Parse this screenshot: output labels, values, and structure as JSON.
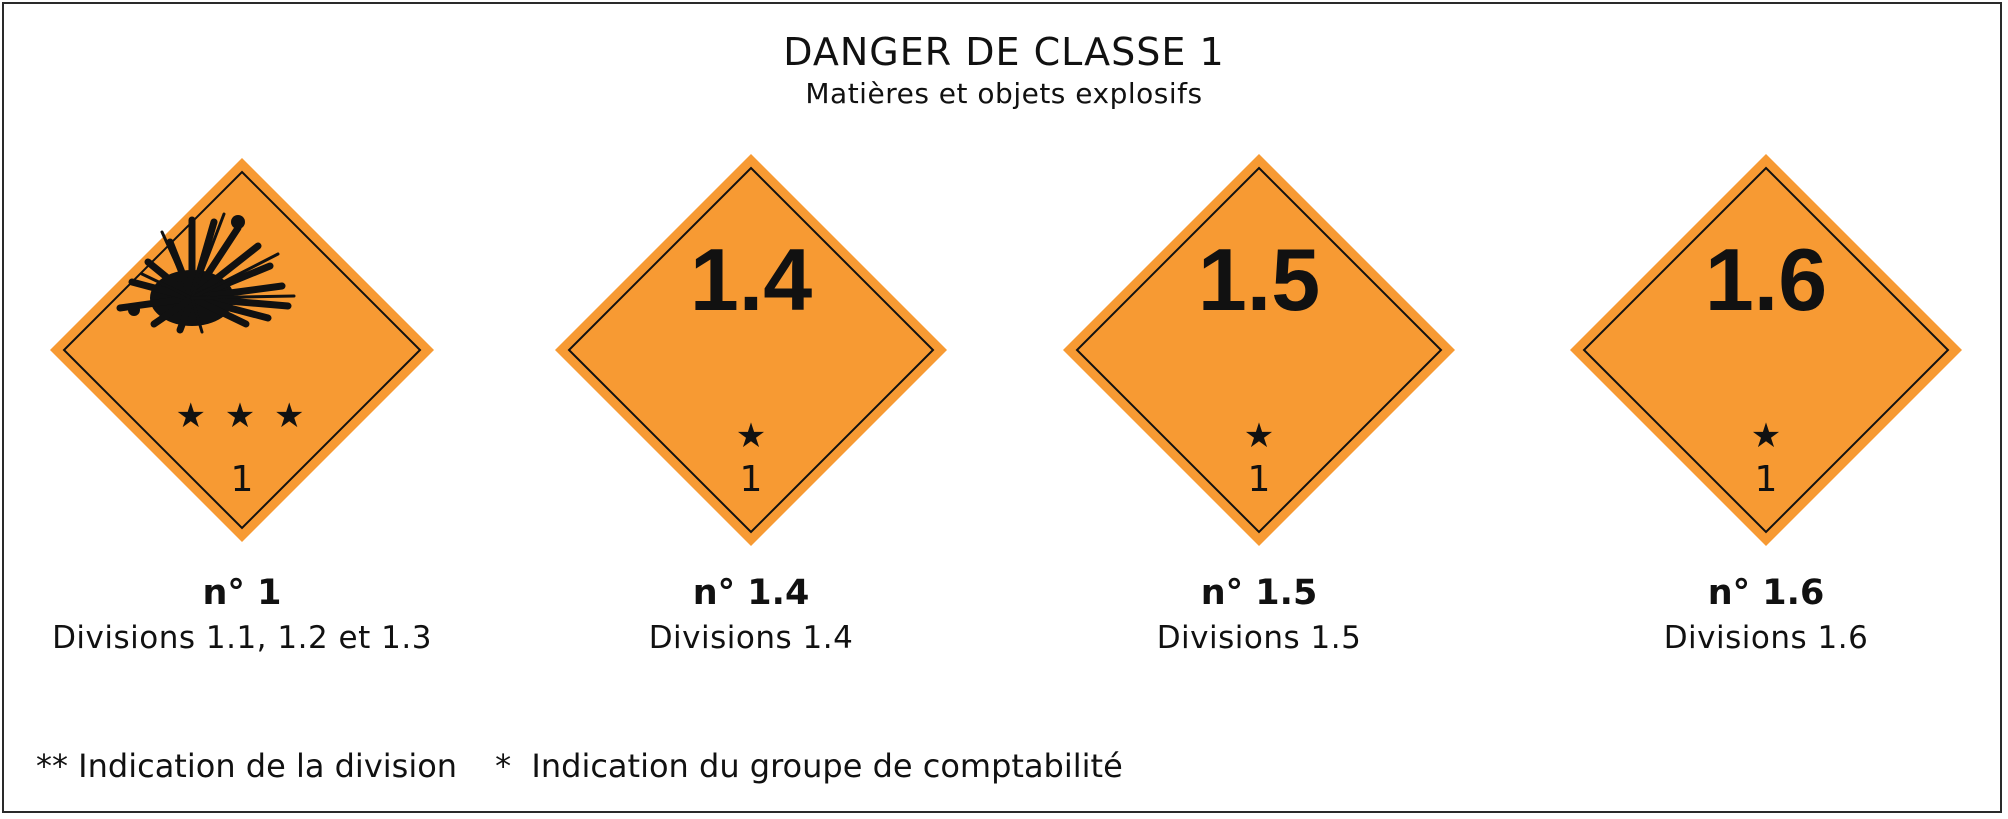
{
  "header": {
    "title": "DANGER DE CLASSE 1",
    "subtitle": "Matières et objets explosifs"
  },
  "colors": {
    "placard_fill": "#F79A33",
    "ink": "#111111",
    "frame": "#2a2a2a"
  },
  "placards": [
    {
      "symbol": "explosion-burst-icon",
      "top_text": "",
      "stars": "★ ★ ★",
      "class_number": "1",
      "caption_number": "n° 1",
      "caption_divisions": "Divisions 1.1, 1.2 et 1.3"
    },
    {
      "symbol": "",
      "top_text": "1.4",
      "stars": "★",
      "class_number": "1",
      "caption_number": "n° 1.4",
      "caption_divisions": "Divisions 1.4"
    },
    {
      "symbol": "",
      "top_text": "1.5",
      "stars": "★",
      "class_number": "1",
      "caption_number": "n° 1.5",
      "caption_divisions": "Divisions 1.5"
    },
    {
      "symbol": "",
      "top_text": "1.6",
      "stars": "★",
      "class_number": "1",
      "caption_number": "n° 1.6",
      "caption_divisions": "Divisions 1.6"
    }
  ],
  "legend": {
    "division_note": "** Indication de la division",
    "compat_note": "*  Indication du groupe de comptabilité"
  }
}
